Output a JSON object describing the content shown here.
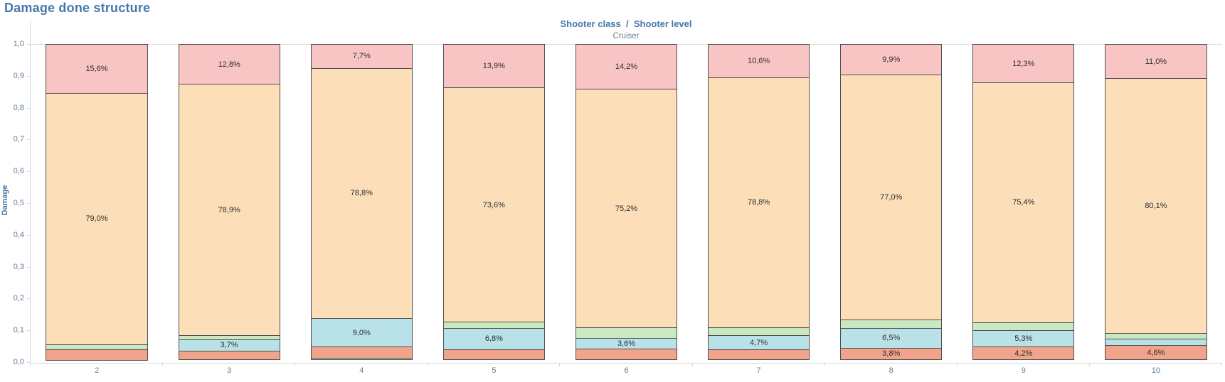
{
  "title": "Damage done structure",
  "header": {
    "column_field": "Shooter class",
    "separator": "/",
    "row_field": "Shooter level",
    "combined": "Shooter class  /  Shooter level",
    "pane_label": "Cruiser"
  },
  "y_axis": {
    "title": "Damage",
    "min": 0.0,
    "max": 1.0,
    "tick_labels": [
      "1,0",
      "0,9",
      "0,8",
      "0,7",
      "0,6",
      "0,5",
      "0,4",
      "0,3",
      "0,2",
      "0,1",
      "0,0"
    ]
  },
  "x_axis": {
    "labels": [
      "2",
      "3",
      "4",
      "5",
      "6",
      "7",
      "8",
      "9",
      "10"
    ]
  },
  "colors": {
    "pink": "#f8c4c4",
    "peach": "#fcdeb9",
    "green": "#cae9c0",
    "blue": "#b9e2e8",
    "salmon": "#f1a38c",
    "segment_border": "#4f4f4f",
    "axis_line": "#d8d8d8",
    "tick_label": "#5e81a2",
    "title_blue": "#4579ab",
    "pane_label_gray": "#6e7e8c",
    "segment_label": "#2e2e2e"
  },
  "chart_data": {
    "type": "bar",
    "variant": "stacked-normalized",
    "title": "Damage done structure",
    "xlabel": "Shooter level",
    "ylabel": "Damage",
    "ylim": [
      0.0,
      1.0
    ],
    "grid": "top-and-bottom-rule-only",
    "legend": "none",
    "categories": [
      "2",
      "3",
      "4",
      "5",
      "6",
      "7",
      "8",
      "9",
      "10"
    ],
    "bars": [
      {
        "category": "2",
        "segments": [
          {
            "color": "salmon",
            "value": 3.5,
            "label": ""
          },
          {
            "color": "green",
            "value": 1.9,
            "label": ""
          },
          {
            "color": "peach",
            "value": 79.0,
            "label": "79,0%"
          },
          {
            "color": "pink",
            "value": 15.6,
            "label": "15,6%"
          }
        ]
      },
      {
        "category": "3",
        "segments": [
          {
            "color": "salmon",
            "value": 3.0,
            "label": ""
          },
          {
            "color": "blue",
            "value": 3.7,
            "label": "3,7%"
          },
          {
            "color": "green",
            "value": 1.6,
            "label": ""
          },
          {
            "color": "peach",
            "value": 78.9,
            "label": "78,9%"
          },
          {
            "color": "pink",
            "value": 12.8,
            "label": "12,8%"
          }
        ]
      },
      {
        "category": "4",
        "segments": [
          {
            "color": "green",
            "value": 0.7,
            "label": ""
          },
          {
            "color": "salmon",
            "value": 3.8,
            "label": ""
          },
          {
            "color": "blue",
            "value": 9.0,
            "label": "9,0%"
          },
          {
            "color": "peach",
            "value": 78.8,
            "label": "78,8%"
          },
          {
            "color": "pink",
            "value": 7.7,
            "label": "7,7%"
          }
        ]
      },
      {
        "category": "5",
        "segments": [
          {
            "color": "salmon",
            "value": 3.4,
            "label": ""
          },
          {
            "color": "blue",
            "value": 6.8,
            "label": "6,8%"
          },
          {
            "color": "green",
            "value": 2.3,
            "label": ""
          },
          {
            "color": "peach",
            "value": 73.6,
            "label": "73,6%"
          },
          {
            "color": "pink",
            "value": 13.9,
            "label": "13,9%"
          }
        ]
      },
      {
        "category": "6",
        "segments": [
          {
            "color": "salmon",
            "value": 3.5,
            "label": ""
          },
          {
            "color": "blue",
            "value": 3.6,
            "label": "3,6%"
          },
          {
            "color": "green",
            "value": 3.5,
            "label": ""
          },
          {
            "color": "peach",
            "value": 75.2,
            "label": "75,2%"
          },
          {
            "color": "pink",
            "value": 14.2,
            "label": "14,2%"
          }
        ]
      },
      {
        "category": "7",
        "segments": [
          {
            "color": "salmon",
            "value": 3.3,
            "label": ""
          },
          {
            "color": "blue",
            "value": 4.7,
            "label": "4,7%"
          },
          {
            "color": "green",
            "value": 2.6,
            "label": ""
          },
          {
            "color": "peach",
            "value": 78.8,
            "label": "78,8%"
          },
          {
            "color": "pink",
            "value": 10.6,
            "label": "10,6%"
          }
        ]
      },
      {
        "category": "8",
        "segments": [
          {
            "color": "salmon",
            "value": 3.8,
            "label": "3,8%"
          },
          {
            "color": "blue",
            "value": 6.5,
            "label": "6,5%"
          },
          {
            "color": "green",
            "value": 2.8,
            "label": ""
          },
          {
            "color": "peach",
            "value": 77.0,
            "label": "77,0%"
          },
          {
            "color": "pink",
            "value": 9.9,
            "label": "9,9%"
          }
        ]
      },
      {
        "category": "9",
        "segments": [
          {
            "color": "salmon",
            "value": 4.2,
            "label": "4,2%"
          },
          {
            "color": "blue",
            "value": 5.3,
            "label": "5,3%"
          },
          {
            "color": "green",
            "value": 2.8,
            "label": ""
          },
          {
            "color": "peach",
            "value": 75.4,
            "label": "75,4%"
          },
          {
            "color": "pink",
            "value": 12.3,
            "label": "12,3%"
          }
        ]
      },
      {
        "category": "10",
        "segments": [
          {
            "color": "salmon",
            "value": 4.6,
            "label": "4,6%"
          },
          {
            "color": "blue",
            "value": 2.3,
            "label": ""
          },
          {
            "color": "green",
            "value": 2.0,
            "label": ""
          },
          {
            "color": "peach",
            "value": 80.1,
            "label": "80,1%"
          },
          {
            "color": "pink",
            "value": 11.0,
            "label": "11,0%"
          }
        ]
      }
    ]
  }
}
